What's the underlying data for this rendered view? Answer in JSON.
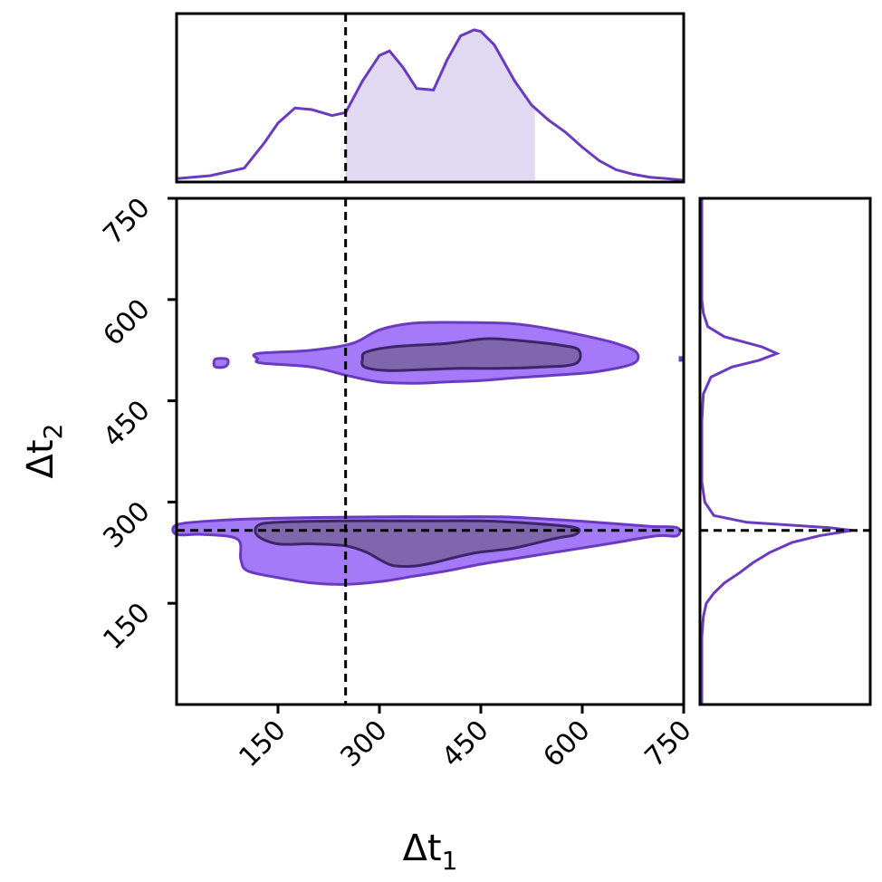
{
  "chart_data": {
    "type": "corner",
    "xlabel": "Δt",
    "xlabel_sub": "1",
    "ylabel": "Δt",
    "ylabel_sub": "2",
    "xlim": [
      0,
      750
    ],
    "ylim": [
      0,
      750
    ],
    "xticks": [
      "150",
      "300",
      "450",
      "600",
      "750"
    ],
    "yticks": [
      "150",
      "300",
      "450",
      "600",
      "750"
    ],
    "reference_lines": {
      "x": 250,
      "y": 258
    },
    "colors": {
      "line": "#6a3bc0",
      "outer_fill": "#a57af8",
      "inner_fill": "#7f66ad",
      "inner_edge": "#3c2569",
      "marginal_fill": "#e1d9f1"
    },
    "marginal_x": {
      "x": [
        0,
        50,
        100,
        130,
        150,
        175,
        200,
        230,
        250,
        275,
        300,
        315,
        335,
        355,
        380,
        400,
        420,
        440,
        450,
        470,
        500,
        525,
        550,
        575,
        600,
        625,
        650,
        675,
        700,
        725,
        750
      ],
      "density": [
        0.01,
        0.03,
        0.08,
        0.25,
        0.38,
        0.48,
        0.47,
        0.43,
        0.45,
        0.66,
        0.83,
        0.86,
        0.75,
        0.61,
        0.6,
        0.8,
        0.96,
        1.0,
        0.99,
        0.9,
        0.66,
        0.5,
        0.4,
        0.32,
        0.22,
        0.13,
        0.07,
        0.04,
        0.02,
        0.01,
        0.0
      ],
      "shaded_interval": [
        250,
        530
      ]
    },
    "marginal_y": {
      "y": [
        0,
        60,
        100,
        130,
        150,
        165,
        180,
        195,
        210,
        225,
        240,
        250,
        255,
        258,
        262,
        270,
        280,
        300,
        330,
        370,
        420,
        460,
        485,
        500,
        510,
        520,
        530,
        545,
        560,
        580,
        600,
        640,
        700,
        750
      ],
      "density": [
        0.0,
        0.0,
        0.0,
        0.01,
        0.03,
        0.08,
        0.15,
        0.25,
        0.34,
        0.45,
        0.6,
        0.78,
        0.92,
        1.0,
        0.85,
        0.3,
        0.08,
        0.02,
        0.0,
        0.0,
        0.0,
        0.01,
        0.06,
        0.2,
        0.38,
        0.5,
        0.4,
        0.15,
        0.04,
        0.01,
        0.0,
        0.0,
        0.0,
        0.0
      ]
    },
    "contours": {
      "upper_outer": [
        [
          120,
          520
        ],
        [
          200,
          525
        ],
        [
          260,
          535
        ],
        [
          300,
          555
        ],
        [
          350,
          565
        ],
        [
          420,
          566
        ],
        [
          500,
          564
        ],
        [
          560,
          555
        ],
        [
          610,
          545
        ],
        [
          650,
          535
        ],
        [
          680,
          522
        ],
        [
          675,
          505
        ],
        [
          620,
          493
        ],
        [
          560,
          488
        ],
        [
          500,
          484
        ],
        [
          450,
          480
        ],
        [
          400,
          478
        ],
        [
          355,
          476
        ],
        [
          300,
          478
        ],
        [
          250,
          488
        ],
        [
          200,
          500
        ],
        [
          125,
          506
        ],
        [
          120,
          512
        ]
      ],
      "upper_inner": [
        [
          280,
          522
        ],
        [
          320,
          530
        ],
        [
          400,
          535
        ],
        [
          460,
          542
        ],
        [
          520,
          538
        ],
        [
          570,
          532
        ],
        [
          595,
          525
        ],
        [
          590,
          505
        ],
        [
          540,
          500
        ],
        [
          480,
          498
        ],
        [
          420,
          498
        ],
        [
          360,
          496
        ],
        [
          310,
          495
        ],
        [
          278,
          500
        ],
        [
          275,
          512
        ]
      ],
      "upper_island_small": [
        [
          58,
          512
        ],
        [
          74,
          512
        ],
        [
          76,
          505
        ],
        [
          70,
          500
        ],
        [
          58,
          500
        ],
        [
          55,
          505
        ]
      ],
      "lower_outer": [
        [
          -10,
          266
        ],
        [
          50,
          272
        ],
        [
          150,
          276
        ],
        [
          300,
          278
        ],
        [
          400,
          278
        ],
        [
          480,
          278
        ],
        [
          560,
          274
        ],
        [
          620,
          270
        ],
        [
          700,
          264
        ],
        [
          740,
          262
        ],
        [
          740,
          250
        ],
        [
          710,
          250
        ],
        [
          650,
          240
        ],
        [
          600,
          232
        ],
        [
          550,
          224
        ],
        [
          500,
          216
        ],
        [
          450,
          208
        ],
        [
          400,
          198
        ],
        [
          350,
          190
        ],
        [
          300,
          182
        ],
        [
          250,
          178
        ],
        [
          200,
          180
        ],
        [
          150,
          188
        ],
        [
          105,
          198
        ],
        [
          95,
          215
        ],
        [
          90,
          245
        ],
        [
          40,
          252
        ],
        [
          -10,
          252
        ]
      ],
      "lower_inner": [
        [
          120,
          265
        ],
        [
          150,
          270
        ],
        [
          250,
          272
        ],
        [
          350,
          272
        ],
        [
          450,
          272
        ],
        [
          530,
          268
        ],
        [
          590,
          262
        ],
        [
          590,
          252
        ],
        [
          560,
          246
        ],
        [
          500,
          232
        ],
        [
          450,
          226
        ],
        [
          420,
          220
        ],
        [
          380,
          210
        ],
        [
          350,
          205
        ],
        [
          320,
          206
        ],
        [
          300,
          215
        ],
        [
          280,
          226
        ],
        [
          250,
          235
        ],
        [
          200,
          238
        ],
        [
          150,
          238
        ],
        [
          120,
          250
        ]
      ]
    }
  }
}
